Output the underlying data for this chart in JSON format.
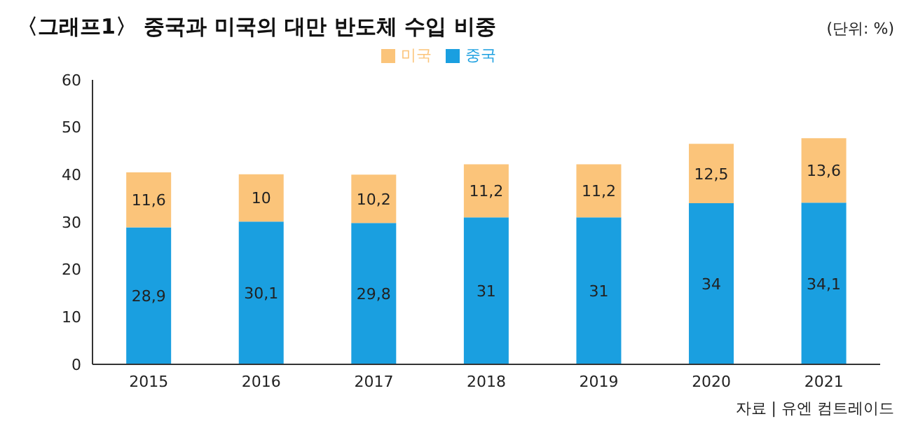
{
  "chart_data": {
    "type": "bar",
    "title": "〈그래프1〉 중국과 미국의 대만 반도체 수입 비중",
    "annotations": [
      "(단위: %)",
      "자료 | 유엔 컴트레이드"
    ],
    "categories": [
      "2015",
      "2016",
      "2017",
      "2018",
      "2019",
      "2020",
      "2021"
    ],
    "stacked": true,
    "series": [
      {
        "name": "중국",
        "color": "#1a9fe0",
        "values": [
          28.9,
          30.1,
          29.8,
          31,
          31,
          34,
          34.1
        ],
        "value_labels": [
          "28,9",
          "30,1",
          "29,8",
          "31",
          "31",
          "34",
          "34,1"
        ]
      },
      {
        "name": "미국",
        "color": "#fbc47a",
        "values": [
          11.6,
          10,
          10.2,
          11.2,
          11.2,
          12.5,
          13.6
        ],
        "value_labels": [
          "11,6",
          "10",
          "10,2",
          "11,2",
          "11,2",
          "12,5",
          "13,6"
        ]
      }
    ],
    "ylim": [
      0,
      60
    ],
    "yticks": [
      0,
      10,
      20,
      30,
      40,
      50,
      60
    ],
    "grid": false,
    "legend": "top"
  }
}
